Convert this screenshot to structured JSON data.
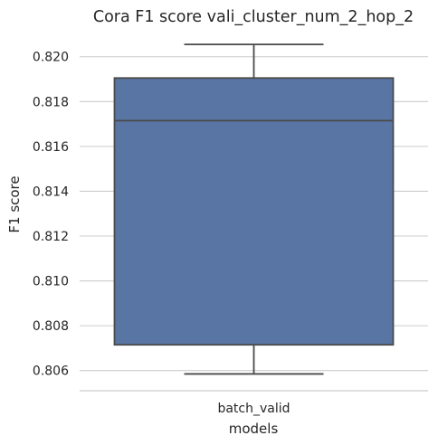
{
  "chart_data": {
    "type": "box",
    "title": "Cora F1 score vali_cluster_num_2_hop_2",
    "xlabel": "models",
    "ylabel": "F1 score",
    "categories": [
      "batch_valid"
    ],
    "boxes": [
      {
        "name": "batch_valid",
        "whisker_low": 0.80585,
        "q1": 0.80715,
        "median": 0.81715,
        "q3": 0.81905,
        "whisker_high": 0.82055
      }
    ],
    "yticks": [
      0.806,
      0.808,
      0.81,
      0.812,
      0.814,
      0.816,
      0.818,
      0.82
    ],
    "ytick_labels": [
      "0.806",
      "0.808",
      "0.810",
      "0.812",
      "0.814",
      "0.816",
      "0.818",
      "0.820"
    ],
    "ylim": [
      0.8051,
      0.8212
    ],
    "grid": true,
    "box_color": "#5875a4",
    "line_color": "#4a4a4a",
    "grid_color": "#cccccc"
  }
}
